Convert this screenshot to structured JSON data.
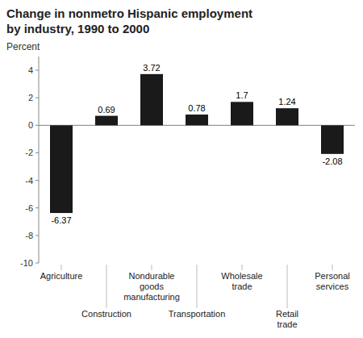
{
  "chart_data": {
    "type": "bar",
    "title": "Change in nonmetro Hispanic employment",
    "subtitle": "by industry, 1990 to 2000",
    "y_label": "Percent",
    "categories": [
      "Agriculture",
      "Construction",
      "Nondurable goods manufacturing",
      "Transportation",
      "Wholesale trade",
      "Retail trade",
      "Personal services"
    ],
    "values": [
      -6.37,
      0.69,
      3.72,
      0.78,
      1.7,
      1.24,
      -2.08
    ],
    "color": "#1a1a1a",
    "ylim": [
      -10,
      5
    ],
    "yticks": [
      -10,
      -8,
      -6,
      -4,
      -2,
      0,
      2,
      4
    ],
    "data_labels": true
  }
}
